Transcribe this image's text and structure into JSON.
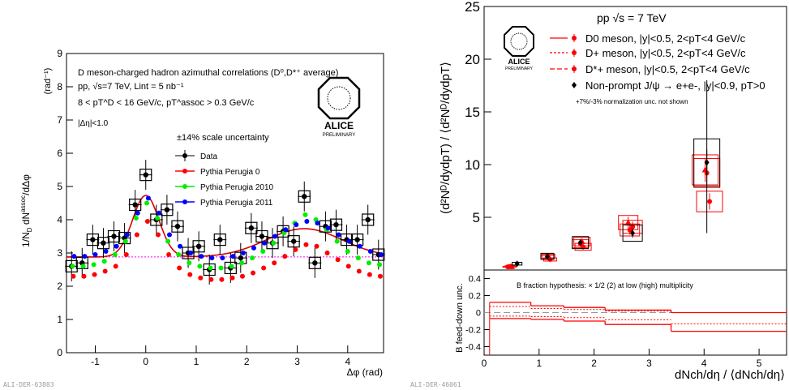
{
  "left_panel": {
    "title": "D meson-charged hadron azimuthal correlations (D⁰,D*⁺ average)",
    "line_pp": "pp, √s=7 TeV, Lint = 5 nb⁻¹",
    "line_pt": "8 < pT^D < 16 GeV/c,  pT^assoc > 0.3 GeV/c",
    "line_eta": "|Δη|<1.0",
    "scale_unc": "±14% scale uncertainty",
    "ylabel_unit": "(rad⁻¹)",
    "xlabel": "Δφ (rad)",
    "tag": "ALI-DER-63803"
  },
  "right_panel": {
    "header": "pp √s = 7 TeV",
    "norm_note": "+7%/-3% normalization unc. not shown",
    "lower_note": "B fraction hypothesis: × 1/2 (2) at low (high) multiplicity",
    "lower_ylabel": "B feed-down unc.",
    "xlabel": "dNch/dη / ⟨dNch/dη⟩",
    "ylabel": "(d²Nᴰ/dydpT) / ⟨d²Nᴰ/dydpT⟩",
    "tag": "ALI-DER-46061"
  },
  "logo": {
    "name": "ALICE",
    "sub": "PRELIMINARY"
  },
  "chart_data": [
    {
      "type": "scatter",
      "title": "D meson-charged hadron azimuthal correlations (D0,D*+ average)",
      "xlabel": "Δφ (rad)",
      "ylabel": "(1/N_D) dN^assoc/dΔφ (rad^-1)",
      "xlim": [
        -1.57,
        4.71
      ],
      "ylim": [
        0,
        9
      ],
      "xticks": [
        -1,
        0,
        1,
        2,
        3,
        4
      ],
      "yticks": [
        0,
        1,
        2,
        3,
        4,
        5,
        6,
        7,
        8,
        9
      ],
      "x": [
        -1.47,
        -1.26,
        -1.05,
        -0.84,
        -0.63,
        -0.42,
        -0.21,
        0.0,
        0.21,
        0.42,
        0.63,
        0.84,
        1.05,
        1.26,
        1.47,
        1.68,
        1.88,
        2.09,
        2.3,
        2.51,
        2.72,
        2.93,
        3.14,
        3.35,
        3.56,
        3.77,
        3.98,
        4.19,
        4.4,
        4.61
      ],
      "series": [
        {
          "name": "Data",
          "color": "#000000",
          "values": [
            2.6,
            2.7,
            3.4,
            3.3,
            3.5,
            3.45,
            4.45,
            5.35,
            4.0,
            4.3,
            3.8,
            3.0,
            3.2,
            2.5,
            3.4,
            2.55,
            2.85,
            3.75,
            3.5,
            3.3,
            3.65,
            3.35,
            4.7,
            2.7,
            3.8,
            3.85,
            3.4,
            3.4,
            4.0,
            2.95
          ]
        },
        {
          "name": "Pythia Perugia 0",
          "color": "#ff0000",
          "values": [
            2.3,
            2.3,
            2.35,
            2.45,
            2.6,
            2.95,
            3.55,
            3.95,
            3.55,
            2.95,
            2.55,
            2.35,
            2.25,
            2.2,
            2.2,
            2.25,
            2.3,
            2.4,
            2.55,
            2.7,
            2.9,
            3.1,
            3.25,
            3.2,
            3.0,
            2.8,
            2.6,
            2.45,
            2.35,
            2.3
          ]
        },
        {
          "name": "Pythia Perugia 2010",
          "color": "#00ee00",
          "values": [
            2.6,
            2.6,
            2.65,
            2.75,
            2.95,
            3.35,
            4.05,
            4.5,
            4.05,
            3.35,
            2.95,
            2.7,
            2.6,
            2.55,
            2.55,
            2.6,
            2.7,
            2.85,
            3.05,
            3.3,
            3.6,
            3.9,
            4.15,
            4.0,
            3.7,
            3.35,
            3.05,
            2.85,
            2.7,
            2.65
          ]
        },
        {
          "name": "Pythia Perugia 2011",
          "color": "#0000ff",
          "values": [
            2.9,
            2.9,
            2.95,
            3.05,
            3.2,
            3.55,
            4.2,
            4.65,
            4.2,
            3.55,
            3.2,
            3.0,
            2.9,
            2.85,
            2.85,
            2.9,
            3.0,
            3.15,
            3.3,
            3.5,
            3.7,
            3.85,
            3.95,
            3.9,
            3.75,
            3.55,
            3.35,
            3.2,
            3.05,
            2.95
          ]
        }
      ],
      "baseline": 2.88
    },
    {
      "type": "scatter",
      "title": "pp √s = 7 TeV",
      "xlabel": "dNch/dη / ⟨dNch/dη⟩",
      "ylabel": "(d²N^D/dydpT) / ⟨d²N^D/dydpT⟩",
      "xlim": [
        0,
        5.5
      ],
      "ylim": [
        0,
        25
      ],
      "xticks": [
        0,
        1,
        2,
        3,
        4,
        5
      ],
      "yticks": [
        5,
        10,
        15,
        20,
        25
      ],
      "series": [
        {
          "name": "D0 meson, |y|<0.5, 2<pT<4 GeV/c",
          "color": "#ff0000",
          "x": [
            0.43,
            1.15,
            1.75,
            2.65,
            4.05
          ],
          "values": [
            0.3,
            1.2,
            2.5,
            3.8,
            9.2
          ]
        },
        {
          "name": "D+ meson, |y|<0.5, 2<pT<4 GeV/c",
          "color": "#ff0000",
          "x": [
            0.47,
            1.2,
            1.8,
            2.7,
            4.1
          ],
          "values": [
            0.35,
            1.0,
            2.2,
            4.1,
            6.5
          ]
        },
        {
          "name": "D*+ meson, |y|<0.5, 2<pT<4 GeV/c",
          "color": "#ff0000",
          "x": [
            0.5,
            1.17,
            1.78,
            2.62,
            4.02
          ],
          "values": [
            0.32,
            1.3,
            2.7,
            4.5,
            9.5
          ]
        },
        {
          "name": "Non-prompt J/ψ → e+e-, |y|<0.9, pT>0",
          "color": "#000000",
          "x": [
            0.6,
            1.15,
            1.75,
            2.7,
            4.05
          ],
          "values": [
            0.6,
            1.3,
            2.6,
            3.5,
            10.2
          ]
        }
      ]
    },
    {
      "type": "line",
      "title": "B fraction hypothesis: × 1/2 (2) at low (high) multiplicity",
      "ylabel": "B feed-down unc.",
      "xlim": [
        0,
        5.5
      ],
      "ylim": [
        -0.5,
        0.5
      ],
      "yticks": [
        -0.4,
        -0.2,
        0,
        0.2,
        0.4
      ],
      "bin_edges": [
        0.1,
        0.85,
        1.45,
        2.2,
        3.4,
        5.5
      ],
      "series": [
        {
          "name": "upper",
          "values": [
            0.12,
            0.08,
            0.06,
            0.03,
            0.0
          ]
        },
        {
          "name": "lower",
          "values": [
            -0.07,
            -0.08,
            -0.1,
            -0.14,
            -0.22
          ]
        }
      ]
    }
  ],
  "legend_left": [
    "Data",
    "Pythia Perugia 0",
    "Pythia Perugia 2010",
    "Pythia Perugia 2011"
  ]
}
